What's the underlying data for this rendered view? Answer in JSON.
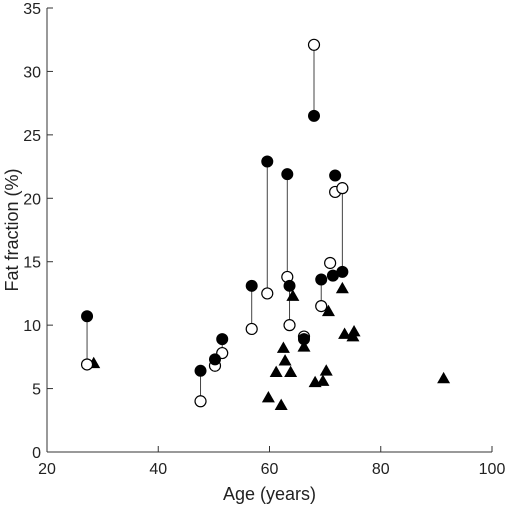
{
  "chart_data": {
    "type": "scatter",
    "xlabel": "Age (years)",
    "ylabel": "Fat fraction (%)",
    "xlim": [
      20,
      100
    ],
    "ylim": [
      0,
      35
    ],
    "xticks": [
      20,
      40,
      60,
      80,
      100
    ],
    "yticks": [
      0,
      5,
      10,
      15,
      20,
      25,
      30,
      35
    ],
    "grid": false,
    "legend": "none",
    "series": [
      {
        "marker": "filled-circle",
        "color": "#000000",
        "points": [
          [
            27.2,
            10.7
          ],
          [
            47.6,
            6.4
          ],
          [
            50.2,
            7.3
          ],
          [
            51.5,
            8.9
          ],
          [
            56.8,
            13.1
          ],
          [
            59.6,
            22.9
          ],
          [
            63.2,
            21.9
          ],
          [
            63.6,
            13.1
          ],
          [
            66.2,
            8.9
          ],
          [
            68,
            26.5
          ],
          [
            69.3,
            13.6
          ],
          [
            71.4,
            13.9
          ],
          [
            71.8,
            21.8
          ],
          [
            73.1,
            14.2
          ]
        ]
      },
      {
        "marker": "open-circle",
        "color": "#000000",
        "points": [
          [
            27.2,
            6.9
          ],
          [
            47.6,
            4.0
          ],
          [
            50.2,
            6.8
          ],
          [
            51.5,
            7.8
          ],
          [
            56.8,
            9.7
          ],
          [
            59.6,
            12.5
          ],
          [
            63.2,
            13.8
          ],
          [
            63.6,
            10.0
          ],
          [
            66.2,
            9.1
          ],
          [
            68,
            32.1
          ],
          [
            69.3,
            11.5
          ],
          [
            70.9,
            14.9
          ],
          [
            71.8,
            20.5
          ],
          [
            73.1,
            20.8
          ]
        ]
      },
      {
        "marker": "filled-triangle",
        "color": "#000000",
        "points": [
          [
            28.4,
            7.0
          ],
          [
            59.8,
            4.3
          ],
          [
            61.2,
            6.3
          ],
          [
            62.1,
            3.7
          ],
          [
            62.5,
            8.2
          ],
          [
            62.8,
            7.2
          ],
          [
            63.8,
            6.3
          ],
          [
            64.2,
            12.3
          ],
          [
            66.2,
            8.3
          ],
          [
            68.2,
            5.5
          ],
          [
            69.6,
            5.6
          ],
          [
            70.2,
            6.4
          ],
          [
            70.6,
            11.1
          ],
          [
            73.1,
            12.9
          ],
          [
            73.5,
            9.3
          ],
          [
            75,
            9.1
          ],
          [
            75.2,
            9.5
          ],
          [
            91.3,
            5.8
          ]
        ]
      }
    ],
    "connectors": [
      [
        27.2,
        10.7,
        27.2,
        6.9
      ],
      [
        47.6,
        6.4,
        47.6,
        4.0
      ],
      [
        50.2,
        7.3,
        50.2,
        6.8
      ],
      [
        51.5,
        8.9,
        51.5,
        7.8
      ],
      [
        56.8,
        13.1,
        56.8,
        9.7
      ],
      [
        59.6,
        22.9,
        59.6,
        12.5
      ],
      [
        63.2,
        21.9,
        63.2,
        13.8
      ],
      [
        63.6,
        13.1,
        63.6,
        10.0
      ],
      [
        68,
        26.5,
        68,
        32.1
      ],
      [
        69.3,
        13.6,
        69.3,
        11.5
      ],
      [
        73.1,
        14.2,
        73.1,
        20.8
      ]
    ]
  }
}
